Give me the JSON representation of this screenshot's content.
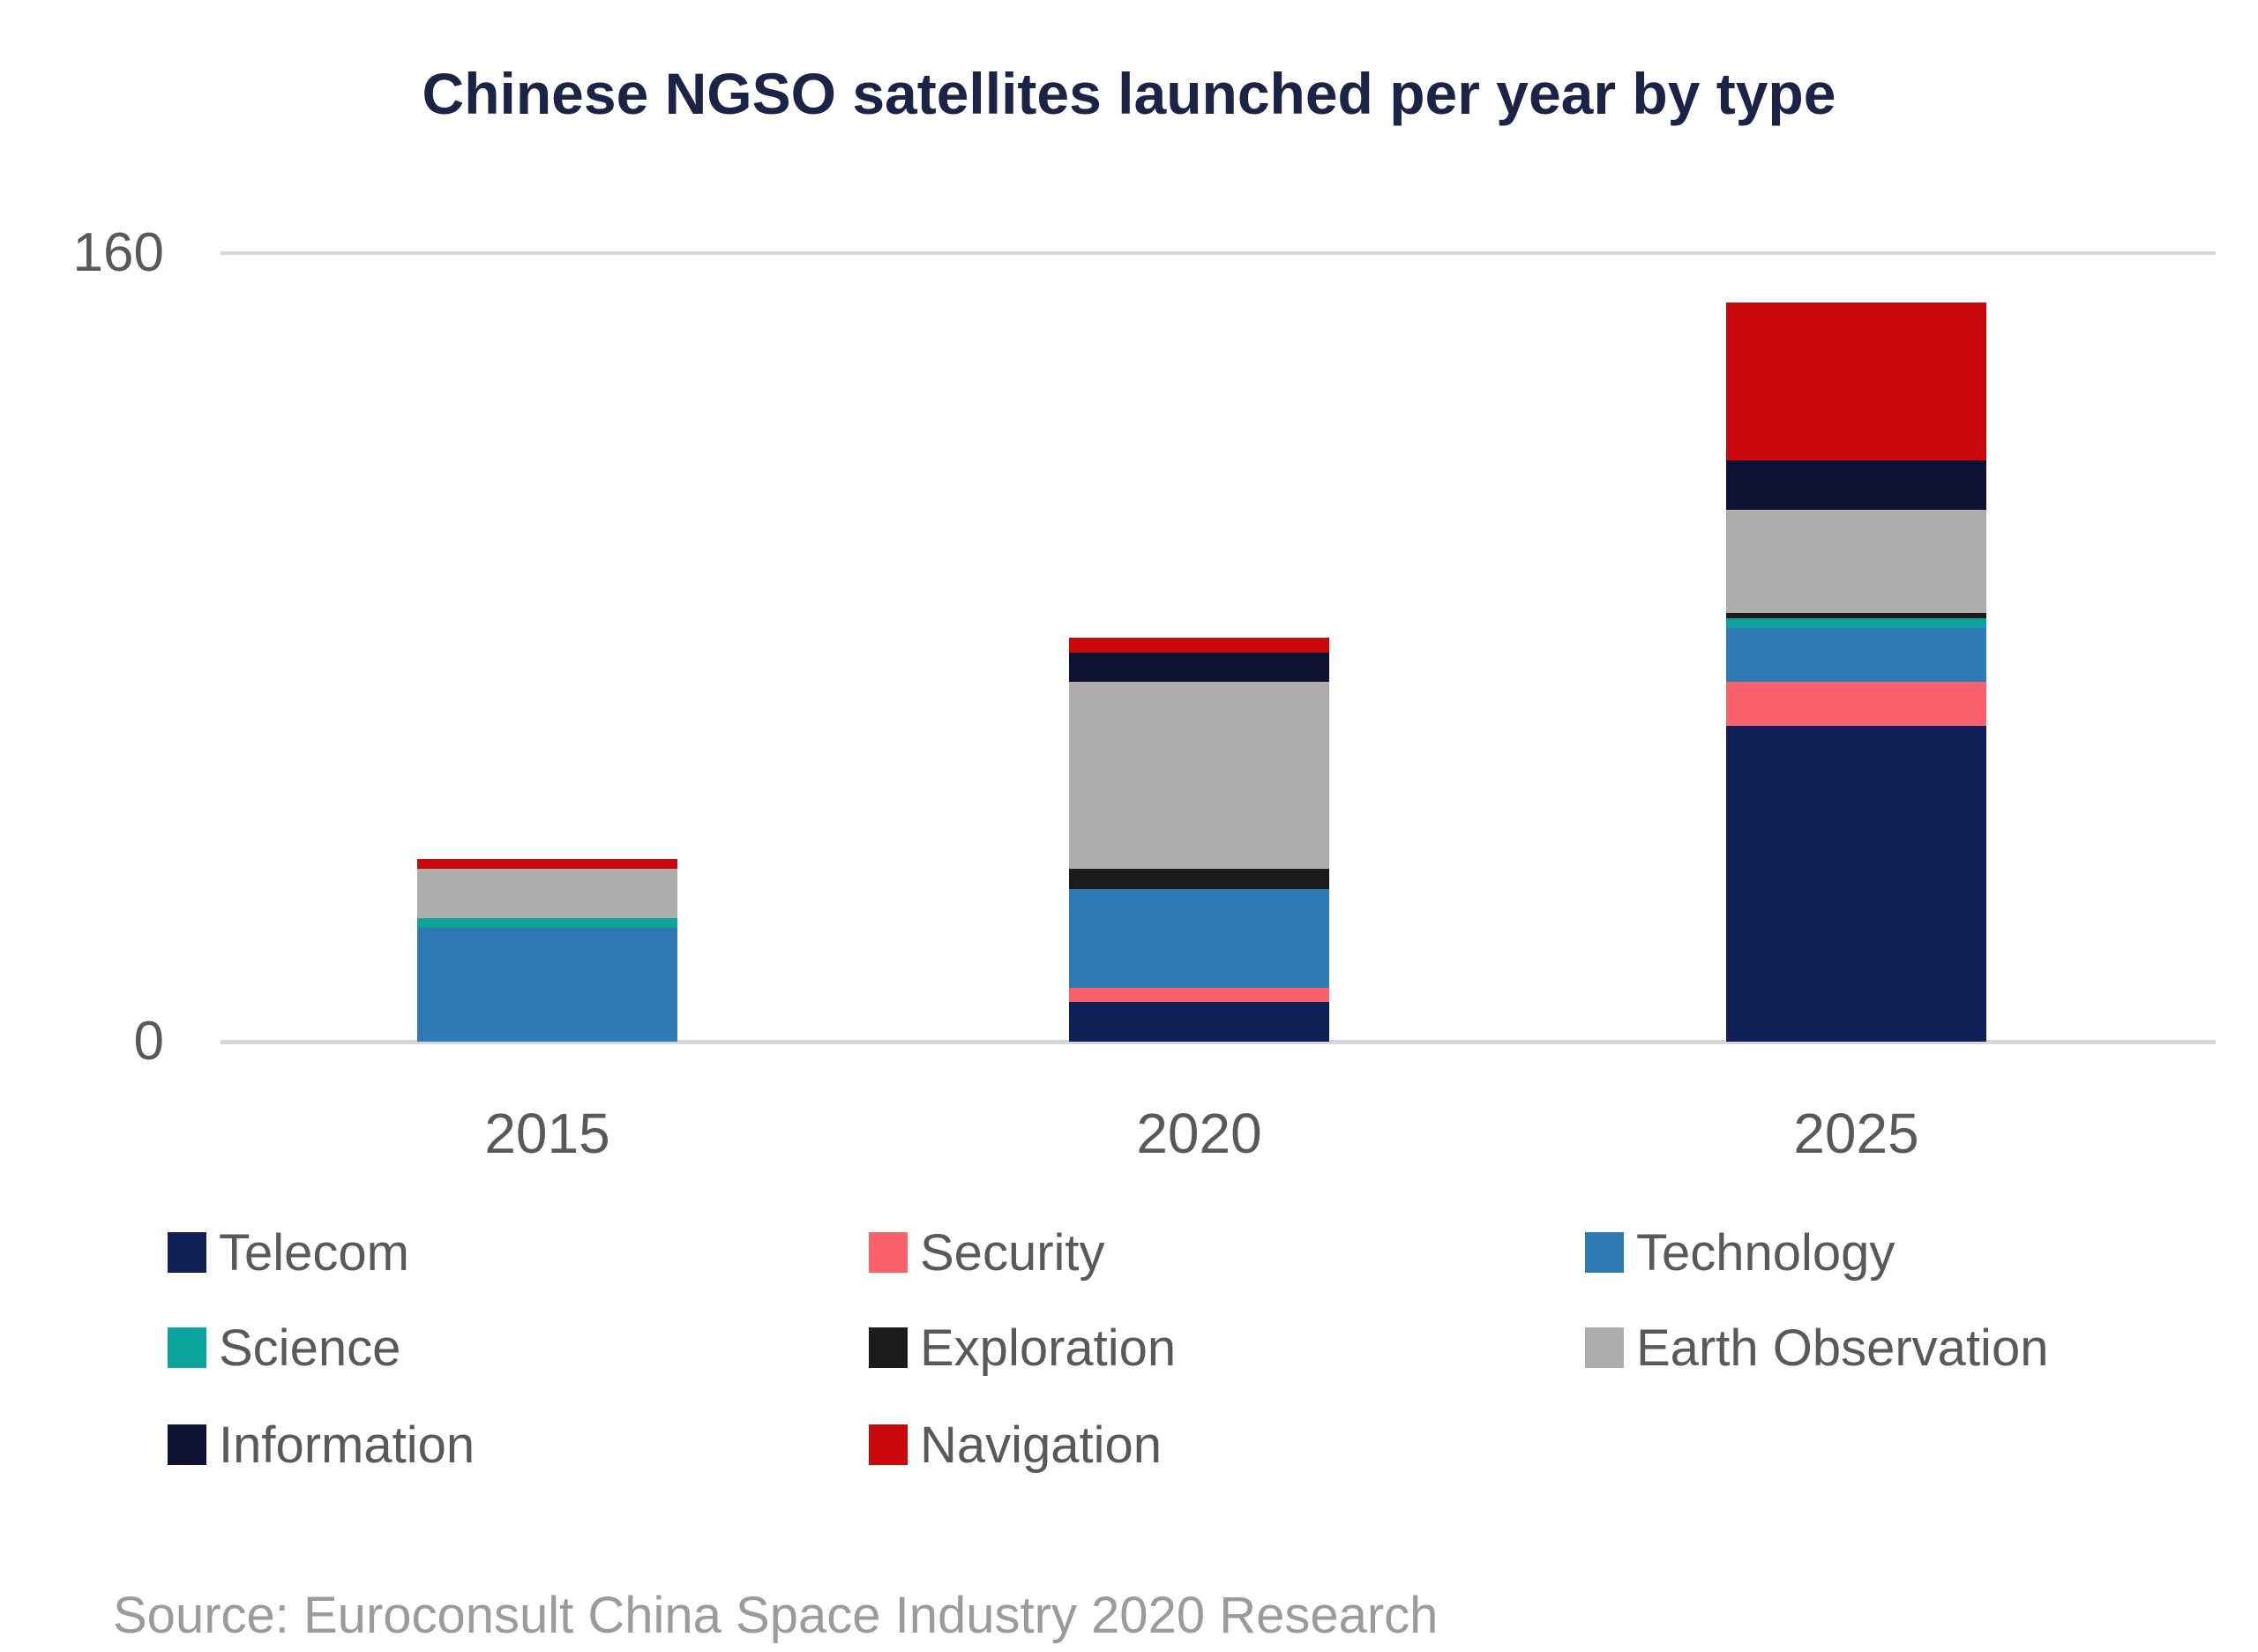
{
  "source": {
    "text": "Source: Euroconsult China Space Industry 2020 Research"
  },
  "colors": {
    "title_text": "#1B2346",
    "axis_text": "#595959",
    "legend_text": "#595959",
    "source_text": "#9B9B9B",
    "gridline": "#D9D9D9"
  },
  "chart_data": {
    "type": "bar",
    "stacked": true,
    "title": "Chinese NGSO satellites launched per year by type",
    "categories": [
      "2015",
      "2020",
      "2025"
    ],
    "series": [
      {
        "name": "Telecom",
        "color": "#122058",
        "values": [
          0,
          8,
          64
        ]
      },
      {
        "name": "Security",
        "color": "#FA616C",
        "values": [
          0,
          3,
          9
        ]
      },
      {
        "name": "Technology",
        "color": "#2D7AB6",
        "values": [
          23,
          20,
          11
        ]
      },
      {
        "name": "Science",
        "color": "#0BA39C",
        "values": [
          2,
          0,
          2
        ]
      },
      {
        "name": "Exploration",
        "color": "#1B1B1B",
        "values": [
          0,
          4,
          1
        ]
      },
      {
        "name": "Earth Observation",
        "color": "#AFACAC",
        "values": [
          10,
          38,
          21
        ]
      },
      {
        "name": "Information",
        "color": "#0D1233",
        "values": [
          0,
          6,
          10
        ]
      },
      {
        "name": "Navigation",
        "color": "#C9080C",
        "values": [
          2,
          3,
          32
        ]
      }
    ],
    "totals": [
      37,
      82,
      150
    ],
    "xlabel": "",
    "ylabel": "",
    "ylim": [
      0,
      160
    ],
    "yticks": [
      {
        "value": 160,
        "label": "160"
      },
      {
        "value": 0,
        "label": "0"
      }
    ],
    "grid": "horizontal",
    "legend_position": "bottom",
    "legend_rows": [
      [
        "Telecom",
        "Security",
        "Technology"
      ],
      [
        "Science",
        "Exploration",
        "Earth Observation"
      ],
      [
        "Information",
        "Navigation"
      ]
    ]
  }
}
